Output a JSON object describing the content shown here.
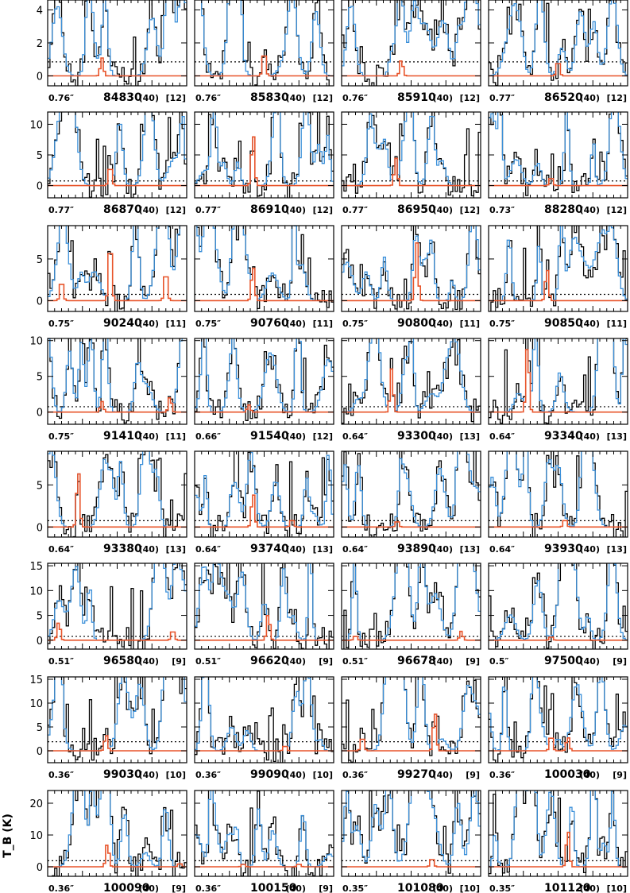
{
  "chart_data": {
    "type": "line",
    "ylabel": "T_B (K)",
    "grid": false,
    "legend": "none",
    "series_colors": {
      "observed": "#000000",
      "model_total": "#3a8fd9",
      "model_species": "#e8542a"
    },
    "threshold_style": "dotted",
    "rows": [
      {
        "ylim": [
          -0.6,
          4.6
        ],
        "yticks": [
          0,
          2,
          4
        ],
        "threshold": 0.85,
        "panels": [
          {
            "resolution": "0.76″",
            "frequency": "84830",
            "channels": "(40)",
            "bracket": "[12]",
            "peaks": [
              {
                "x": 0.39,
                "amp": 1.1
              }
            ]
          },
          {
            "resolution": "0.76″",
            "frequency": "85830",
            "channels": "(40)",
            "bracket": "[12]",
            "peaks": [
              {
                "x": 0.5,
                "amp": 1.6
              }
            ]
          },
          {
            "resolution": "0.76″",
            "frequency": "85910",
            "channels": "(40)",
            "bracket": "[12]",
            "peaks": [
              {
                "x": 0.43,
                "amp": 1.0
              }
            ]
          },
          {
            "resolution": "0.77″",
            "frequency": "86520",
            "channels": "(40)",
            "bracket": "[12]",
            "peaks": [
              {
                "x": 0.5,
                "amp": 1.0
              }
            ]
          }
        ]
      },
      {
        "ylim": [
          -2.0,
          12.0
        ],
        "yticks": [
          0,
          5,
          10
        ],
        "threshold": 0.75,
        "panels": [
          {
            "resolution": "0.77″",
            "frequency": "86870",
            "channels": "(40)",
            "bracket": "[12]",
            "peaks": [
              {
                "x": 0.45,
                "amp": 3.5
              }
            ]
          },
          {
            "resolution": "0.77″",
            "frequency": "86910",
            "channels": "(40)",
            "bracket": "[12]",
            "peaks": [
              {
                "x": 0.42,
                "amp": 8.8
              }
            ]
          },
          {
            "resolution": "0.77″",
            "frequency": "86950",
            "channels": "(40)",
            "bracket": "[12]",
            "peaks": [
              {
                "x": 0.39,
                "amp": 4.5
              }
            ]
          },
          {
            "resolution": "0.73″",
            "frequency": "88280",
            "channels": "(40)",
            "bracket": "[12]",
            "peaks": [
              {
                "x": 0.45,
                "amp": 1.5
              }
            ]
          }
        ]
      },
      {
        "ylim": [
          -1.3,
          9.0
        ],
        "yticks": [
          0,
          5
        ],
        "threshold": 0.75,
        "panels": [
          {
            "resolution": "0.75″",
            "frequency": "90240",
            "channels": "(40)",
            "bracket": "[11]",
            "peaks": [
              {
                "x": 0.1,
                "amp": 2.6
              },
              {
                "x": 0.45,
                "amp": 7.5
              },
              {
                "x": 0.85,
                "amp": 3.8
              }
            ]
          },
          {
            "resolution": "0.75″",
            "frequency": "90760",
            "channels": "(40)",
            "bracket": "[11]",
            "peaks": [
              {
                "x": 0.42,
                "amp": 4.3
              }
            ]
          },
          {
            "resolution": "0.75″",
            "frequency": "90800",
            "channels": "(40)",
            "bracket": "[11]",
            "peaks": [
              {
                "x": 0.54,
                "amp": 7.0
              }
            ]
          },
          {
            "resolution": "0.75″",
            "frequency": "90850",
            "channels": "(40)",
            "bracket": "[11]",
            "peaks": [
              {
                "x": 0.42,
                "amp": 4.0
              }
            ]
          }
        ]
      },
      {
        "ylim": [
          -1.7,
          10.3
        ],
        "yticks": [
          0,
          5,
          10
        ],
        "threshold": 0.75,
        "panels": [
          {
            "resolution": "0.75″",
            "frequency": "91410",
            "channels": "(40)",
            "bracket": "[11]",
            "peaks": [
              {
                "x": 0.39,
                "amp": 1.5
              },
              {
                "x": 0.88,
                "amp": 2.2
              }
            ]
          },
          {
            "resolution": "0.66″",
            "frequency": "91540",
            "channels": "(40)",
            "bracket": "[12]",
            "peaks": [
              {
                "x": 0.39,
                "amp": 1.0
              }
            ]
          },
          {
            "resolution": "0.64″",
            "frequency": "93300",
            "channels": "(40)",
            "bracket": "[13]",
            "peaks": [
              {
                "x": 0.36,
                "amp": 6.1
              }
            ]
          },
          {
            "resolution": "0.64″",
            "frequency": "93340",
            "channels": "(40)",
            "bracket": "[13]",
            "peaks": [
              {
                "x": 0.28,
                "amp": 9.7
              }
            ]
          }
        ]
      },
      {
        "ylim": [
          -1.2,
          9.0
        ],
        "yticks": [
          0,
          5
        ],
        "threshold": 0.75,
        "panels": [
          {
            "resolution": "0.64″",
            "frequency": "93380",
            "channels": "(40)",
            "bracket": "[13]",
            "peaks": [
              {
                "x": 0.22,
                "amp": 7.0
              }
            ]
          },
          {
            "resolution": "0.64″",
            "frequency": "93740",
            "channels": "(40)",
            "bracket": "[13]",
            "peaks": [
              {
                "x": 0.42,
                "amp": 4.2
              },
              {
                "x": 0.7,
                "amp": 1.0
              }
            ]
          },
          {
            "resolution": "0.64″",
            "frequency": "93890",
            "channels": "(40)",
            "bracket": "[13]",
            "peaks": [
              {
                "x": 0.4,
                "amp": 0.8
              }
            ]
          },
          {
            "resolution": "0.64″",
            "frequency": "93930",
            "channels": "(40)",
            "bracket": "[13]",
            "peaks": [
              {
                "x": 0.55,
                "amp": 1.0
              }
            ]
          }
        ]
      },
      {
        "ylim": [
          -1.8,
          15.5
        ],
        "yticks": [
          0,
          5,
          10,
          15
        ],
        "threshold": 0.75,
        "panels": [
          {
            "resolution": "0.51″",
            "frequency": "96580",
            "channels": "(40)",
            "bracket": "[9]",
            "peaks": [
              {
                "x": 0.08,
                "amp": 3.8
              },
              {
                "x": 0.9,
                "amp": 2.2
              }
            ]
          },
          {
            "resolution": "0.51″",
            "frequency": "96620",
            "channels": "(40)",
            "bracket": "[9]",
            "peaks": [
              {
                "x": 0.53,
                "amp": 5.5
              }
            ]
          },
          {
            "resolution": "0.51″",
            "frequency": "96678",
            "channels": "(40)",
            "bracket": "[9]",
            "peaks": [
              {
                "x": 0.1,
                "amp": 1.0
              },
              {
                "x": 0.86,
                "amp": 1.8
              }
            ]
          },
          {
            "resolution": "0.5″",
            "frequency": "97500",
            "channels": "(40)",
            "bracket": "[9]",
            "peaks": [
              {
                "x": 0.45,
                "amp": 0.8
              }
            ]
          }
        ]
      },
      {
        "ylim": [
          -2.5,
          15.5
        ],
        "yticks": [
          0,
          5,
          10,
          15
        ],
        "threshold": 1.9,
        "panels": [
          {
            "resolution": "0.36″",
            "frequency": "99030",
            "channels": "(40)",
            "bracket": "[10]",
            "peaks": [
              {
                "x": 0.42,
                "amp": 3.5
              }
            ]
          },
          {
            "resolution": "0.36″",
            "frequency": "99090",
            "channels": "(40)",
            "bracket": "[10]",
            "peaks": [
              {
                "x": 0.65,
                "amp": 1.2
              }
            ]
          },
          {
            "resolution": "0.36″",
            "frequency": "99270",
            "channels": "(40)",
            "bracket": "[9]",
            "peaks": [
              {
                "x": 0.15,
                "amp": 3.2
              },
              {
                "x": 0.67,
                "amp": 8.5
              }
            ]
          },
          {
            "resolution": "0.36″",
            "frequency": "100030",
            "channels": "(40)",
            "bracket": "[9]",
            "peaks": [
              {
                "x": 0.45,
                "amp": 3.5
              },
              {
                "x": 0.57,
                "amp": 3.0
              }
            ]
          }
        ]
      },
      {
        "ylim": [
          -3.0,
          24.0
        ],
        "yticks": [
          0,
          10,
          20
        ],
        "threshold": 1.9,
        "panels": [
          {
            "resolution": "0.36″",
            "frequency": "100090",
            "channels": "(40)",
            "bracket": "[9]",
            "peaks": [
              {
                "x": 0.43,
                "amp": 7.5
              },
              {
                "x": 0.95,
                "amp": 1.2
              }
            ]
          },
          {
            "resolution": "0.36″",
            "frequency": "100150",
            "channels": "(40)",
            "bracket": "[9]",
            "peaks": [
              {
                "x": 0.35,
                "amp": 1.0
              },
              {
                "x": 0.75,
                "amp": 1.0
              }
            ]
          },
          {
            "resolution": "0.35″",
            "frequency": "101080",
            "channels": "(40)",
            "bracket": "[10]",
            "peaks": [
              {
                "x": 0.65,
                "amp": 3.0
              }
            ]
          },
          {
            "resolution": "0.35″",
            "frequency": "101120",
            "channels": "(40)",
            "bracket": "[10]",
            "peaks": [
              {
                "x": 0.57,
                "amp": 12.0
              }
            ]
          }
        ]
      }
    ]
  }
}
